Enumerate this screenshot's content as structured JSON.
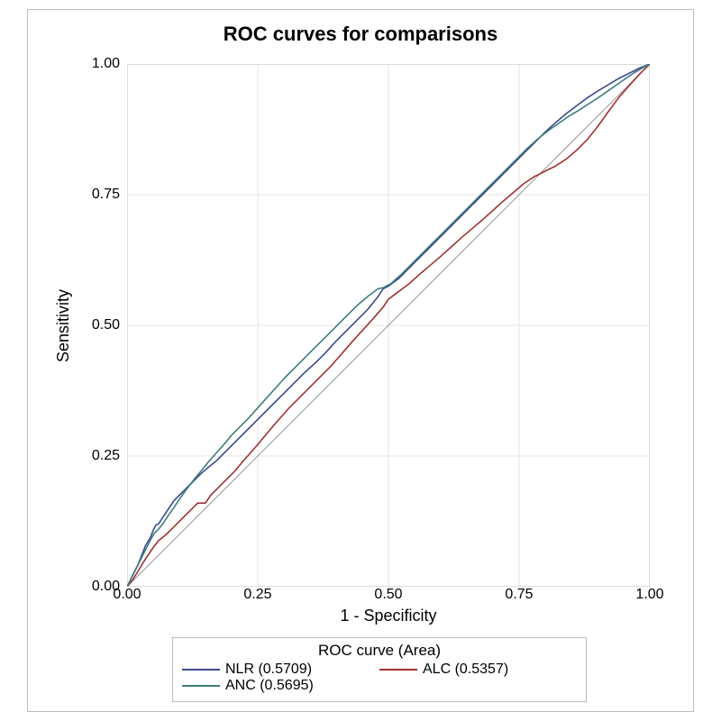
{
  "chart": {
    "type": "roc-line-chart",
    "title": "ROC curves for comparisons",
    "xlabel": "1 - Specificity",
    "ylabel": "Sensitivity",
    "background_color": "#ffffff",
    "frame_color": "#bbbbbb",
    "axis_line_color": "#bbbbbb",
    "grid_color": "#e6e6e6",
    "diagonal_color": "#999999",
    "tick_font_size_pt": 16,
    "label_font_size_pt": 18,
    "title_font_size_pt": 22,
    "line_width": 1.6,
    "xlim": [
      0,
      1
    ],
    "ylim": [
      0,
      1
    ],
    "xticks": [
      0.0,
      0.25,
      0.5,
      0.75,
      1.0
    ],
    "yticks": [
      0.0,
      0.25,
      0.5,
      0.75,
      1.0
    ],
    "xtick_labels": [
      "0.00",
      "0.25",
      "0.50",
      "0.75",
      "1.00"
    ],
    "ytick_labels": [
      "0.00",
      "0.25",
      "0.50",
      "0.75",
      "1.00"
    ],
    "plot_aspect": 1.0,
    "series": [
      {
        "name": "NLR",
        "area": 0.5709,
        "color": "#3b4a8f",
        "points": [
          [
            0.0,
            0.0
          ],
          [
            0.005,
            0.01
          ],
          [
            0.012,
            0.025
          ],
          [
            0.02,
            0.04
          ],
          [
            0.028,
            0.06
          ],
          [
            0.035,
            0.078
          ],
          [
            0.045,
            0.095
          ],
          [
            0.05,
            0.108
          ],
          [
            0.055,
            0.118
          ],
          [
            0.06,
            0.12
          ],
          [
            0.07,
            0.135
          ],
          [
            0.08,
            0.15
          ],
          [
            0.09,
            0.165
          ],
          [
            0.1,
            0.175
          ],
          [
            0.11,
            0.185
          ],
          [
            0.125,
            0.2
          ],
          [
            0.14,
            0.215
          ],
          [
            0.155,
            0.228
          ],
          [
            0.17,
            0.24
          ],
          [
            0.185,
            0.255
          ],
          [
            0.2,
            0.27
          ],
          [
            0.215,
            0.285
          ],
          [
            0.23,
            0.3
          ],
          [
            0.245,
            0.315
          ],
          [
            0.26,
            0.33
          ],
          [
            0.28,
            0.35
          ],
          [
            0.3,
            0.37
          ],
          [
            0.32,
            0.39
          ],
          [
            0.34,
            0.41
          ],
          [
            0.36,
            0.428
          ],
          [
            0.38,
            0.448
          ],
          [
            0.4,
            0.47
          ],
          [
            0.42,
            0.49
          ],
          [
            0.44,
            0.51
          ],
          [
            0.46,
            0.53
          ],
          [
            0.48,
            0.555
          ],
          [
            0.49,
            0.57
          ],
          [
            0.5,
            0.575
          ],
          [
            0.52,
            0.59
          ],
          [
            0.54,
            0.61
          ],
          [
            0.56,
            0.63
          ],
          [
            0.58,
            0.65
          ],
          [
            0.6,
            0.67
          ],
          [
            0.62,
            0.69
          ],
          [
            0.64,
            0.71
          ],
          [
            0.66,
            0.73
          ],
          [
            0.68,
            0.75
          ],
          [
            0.7,
            0.77
          ],
          [
            0.72,
            0.79
          ],
          [
            0.74,
            0.81
          ],
          [
            0.76,
            0.83
          ],
          [
            0.78,
            0.85
          ],
          [
            0.8,
            0.87
          ],
          [
            0.82,
            0.888
          ],
          [
            0.84,
            0.905
          ],
          [
            0.86,
            0.92
          ],
          [
            0.88,
            0.935
          ],
          [
            0.9,
            0.948
          ],
          [
            0.92,
            0.96
          ],
          [
            0.94,
            0.972
          ],
          [
            0.96,
            0.982
          ],
          [
            0.98,
            0.992
          ],
          [
            1.0,
            1.0
          ]
        ]
      },
      {
        "name": "ALC",
        "area": 0.5357,
        "color": "#a03232",
        "points": [
          [
            0.0,
            0.0
          ],
          [
            0.01,
            0.012
          ],
          [
            0.02,
            0.028
          ],
          [
            0.03,
            0.045
          ],
          [
            0.04,
            0.06
          ],
          [
            0.05,
            0.075
          ],
          [
            0.06,
            0.088
          ],
          [
            0.075,
            0.1
          ],
          [
            0.09,
            0.115
          ],
          [
            0.105,
            0.13
          ],
          [
            0.12,
            0.145
          ],
          [
            0.135,
            0.16
          ],
          [
            0.15,
            0.16
          ],
          [
            0.16,
            0.175
          ],
          [
            0.175,
            0.19
          ],
          [
            0.19,
            0.205
          ],
          [
            0.205,
            0.22
          ],
          [
            0.22,
            0.238
          ],
          [
            0.235,
            0.255
          ],
          [
            0.25,
            0.272
          ],
          [
            0.265,
            0.29
          ],
          [
            0.28,
            0.308
          ],
          [
            0.295,
            0.325
          ],
          [
            0.31,
            0.342
          ],
          [
            0.33,
            0.362
          ],
          [
            0.35,
            0.382
          ],
          [
            0.37,
            0.402
          ],
          [
            0.39,
            0.422
          ],
          [
            0.41,
            0.445
          ],
          [
            0.43,
            0.468
          ],
          [
            0.45,
            0.49
          ],
          [
            0.47,
            0.512
          ],
          [
            0.49,
            0.535
          ],
          [
            0.5,
            0.55
          ],
          [
            0.52,
            0.565
          ],
          [
            0.54,
            0.58
          ],
          [
            0.56,
            0.598
          ],
          [
            0.58,
            0.615
          ],
          [
            0.6,
            0.632
          ],
          [
            0.62,
            0.65
          ],
          [
            0.64,
            0.668
          ],
          [
            0.66,
            0.685
          ],
          [
            0.68,
            0.702
          ],
          [
            0.7,
            0.72
          ],
          [
            0.72,
            0.738
          ],
          [
            0.74,
            0.755
          ],
          [
            0.76,
            0.772
          ],
          [
            0.78,
            0.785
          ],
          [
            0.8,
            0.795
          ],
          [
            0.82,
            0.805
          ],
          [
            0.84,
            0.818
          ],
          [
            0.86,
            0.835
          ],
          [
            0.88,
            0.855
          ],
          [
            0.9,
            0.88
          ],
          [
            0.92,
            0.908
          ],
          [
            0.94,
            0.935
          ],
          [
            0.96,
            0.958
          ],
          [
            0.98,
            0.98
          ],
          [
            1.0,
            1.0
          ]
        ]
      },
      {
        "name": "ANC",
        "area": 0.5695,
        "color": "#3d7d7d",
        "points": [
          [
            0.0,
            0.0
          ],
          [
            0.006,
            0.012
          ],
          [
            0.015,
            0.03
          ],
          [
            0.025,
            0.05
          ],
          [
            0.035,
            0.07
          ],
          [
            0.045,
            0.09
          ],
          [
            0.052,
            0.102
          ],
          [
            0.06,
            0.11
          ],
          [
            0.068,
            0.12
          ],
          [
            0.078,
            0.135
          ],
          [
            0.09,
            0.152
          ],
          [
            0.102,
            0.17
          ],
          [
            0.115,
            0.188
          ],
          [
            0.128,
            0.205
          ],
          [
            0.142,
            0.222
          ],
          [
            0.155,
            0.238
          ],
          [
            0.17,
            0.255
          ],
          [
            0.185,
            0.272
          ],
          [
            0.2,
            0.29
          ],
          [
            0.215,
            0.305
          ],
          [
            0.23,
            0.32
          ],
          [
            0.248,
            0.34
          ],
          [
            0.266,
            0.36
          ],
          [
            0.284,
            0.38
          ],
          [
            0.302,
            0.4
          ],
          [
            0.32,
            0.418
          ],
          [
            0.34,
            0.438
          ],
          [
            0.36,
            0.458
          ],
          [
            0.38,
            0.478
          ],
          [
            0.4,
            0.498
          ],
          [
            0.42,
            0.518
          ],
          [
            0.44,
            0.538
          ],
          [
            0.46,
            0.555
          ],
          [
            0.48,
            0.57
          ],
          [
            0.49,
            0.572
          ],
          [
            0.505,
            0.58
          ],
          [
            0.525,
            0.598
          ],
          [
            0.545,
            0.618
          ],
          [
            0.565,
            0.638
          ],
          [
            0.585,
            0.658
          ],
          [
            0.605,
            0.678
          ],
          [
            0.625,
            0.698
          ],
          [
            0.645,
            0.718
          ],
          [
            0.665,
            0.738
          ],
          [
            0.685,
            0.758
          ],
          [
            0.705,
            0.778
          ],
          [
            0.725,
            0.798
          ],
          [
            0.745,
            0.818
          ],
          [
            0.765,
            0.838
          ],
          [
            0.785,
            0.856
          ],
          [
            0.805,
            0.872
          ],
          [
            0.825,
            0.886
          ],
          [
            0.845,
            0.9
          ],
          [
            0.865,
            0.912
          ],
          [
            0.885,
            0.925
          ],
          [
            0.905,
            0.938
          ],
          [
            0.925,
            0.952
          ],
          [
            0.945,
            0.966
          ],
          [
            0.965,
            0.98
          ],
          [
            0.985,
            0.992
          ],
          [
            1.0,
            1.0
          ]
        ]
      }
    ],
    "legend": {
      "title": "ROC curve (Area)",
      "items": [
        {
          "label": "NLR   (0.5709)",
          "series": "NLR"
        },
        {
          "label": "ALC   (0.5357)",
          "series": "ALC"
        },
        {
          "label": "ANC   (0.5695)",
          "series": "ANC"
        }
      ],
      "border_color": "#bbbbbb",
      "font_size_pt": 16,
      "swatch_line_width": 2
    }
  }
}
